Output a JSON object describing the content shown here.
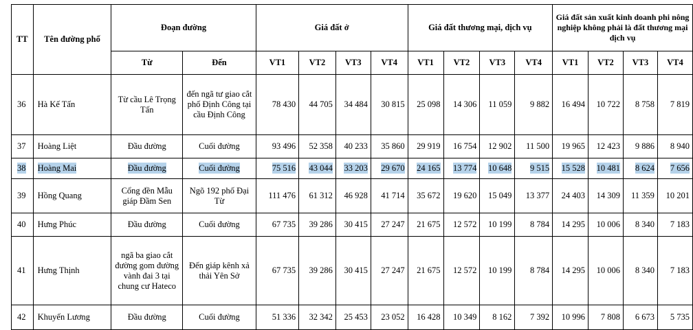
{
  "headers": {
    "tt": "TT",
    "street": "Tên đường phố",
    "segment": "Đoạn đường",
    "from": "Từ",
    "to": "Đến",
    "residential": "Giá đất ở",
    "commercial": "Giá đất thương mại, dịch vụ",
    "nonagri": "Giá đất sản xuất kinh doanh phi nông nghiệp không phải là đất thương mại dịch vụ",
    "vt": [
      "VT1",
      "VT2",
      "VT3",
      "VT4",
      "VT1",
      "VT2",
      "VT3",
      "VT4",
      "VT1",
      "VT2",
      "VT3",
      "VT4"
    ]
  },
  "rows": [
    {
      "tt": "36",
      "name": "Hà Kế Tấn",
      "from": "Từ cầu Lê Trọng Tấn",
      "to": "đến ngã tư giao cắt phố Định Công tại cầu Định Công",
      "v": [
        "78 430",
        "44 705",
        "34 484",
        "30 815",
        "25 098",
        "14 306",
        "11 059",
        "9 882",
        "16 494",
        "10 722",
        "8 758",
        "7 819"
      ]
    },
    {
      "tt": "37",
      "name": "Hoàng Liệt",
      "from": "Đầu đường",
      "to": "Cuối đường",
      "v": [
        "93 496",
        "52 358",
        "40 233",
        "35 860",
        "29 919",
        "16 754",
        "12 902",
        "11 500",
        "19 965",
        "12 423",
        "9 886",
        "8 940"
      ]
    },
    {
      "tt": "38",
      "name": "Hoàng Mai",
      "from": "Đầu đường",
      "to": "Cuối đường",
      "v": [
        "75 516",
        "43 044",
        "33 203",
        "29 670",
        "24 165",
        "13 774",
        "10 648",
        "9 515",
        "15 528",
        "10 481",
        "8 624",
        "7 656"
      ]
    },
    {
      "tt": "39",
      "name": "Hồng Quang",
      "from": "Cổng đền Mẫu giáp Đầm Sen",
      "to": "Ngõ 192 phố Đại Từ",
      "v": [
        "111 476",
        "61 312",
        "46 928",
        "41 714",
        "35 672",
        "19 620",
        "15 049",
        "13 377",
        "24 403",
        "14 309",
        "11 359",
        "10 201"
      ]
    },
    {
      "tt": "40",
      "name": "Hưng Phúc",
      "from": "Đầu đường",
      "to": "Cuối đường",
      "v": [
        "67 735",
        "39 286",
        "30 415",
        "27 247",
        "21 675",
        "12 572",
        "10 199",
        "8 784",
        "14 295",
        "10 006",
        "8 340",
        "7 183"
      ]
    },
    {
      "tt": "41",
      "name": "Hưng Thịnh",
      "from": "ngã ba giao cắt đường gom đường vành đai 3 tại chung cư Hateco",
      "to": "Đến giáp kênh xả thải Yên Sở",
      "v": [
        "67 735",
        "39 286",
        "30 415",
        "27 247",
        "21 675",
        "12 572",
        "10 199",
        "8 784",
        "14 295",
        "10 006",
        "8 340",
        "7 183"
      ]
    },
    {
      "tt": "42",
      "name": "Khuyến Lương",
      "from": "Đầu đường",
      "to": "Cuối đường",
      "v": [
        "51 336",
        "32 342",
        "25 453",
        "23 052",
        "16 428",
        "10 349",
        "8 162",
        "7 392",
        "10 996",
        "7 808",
        "6 673",
        "5 735"
      ]
    }
  ]
}
